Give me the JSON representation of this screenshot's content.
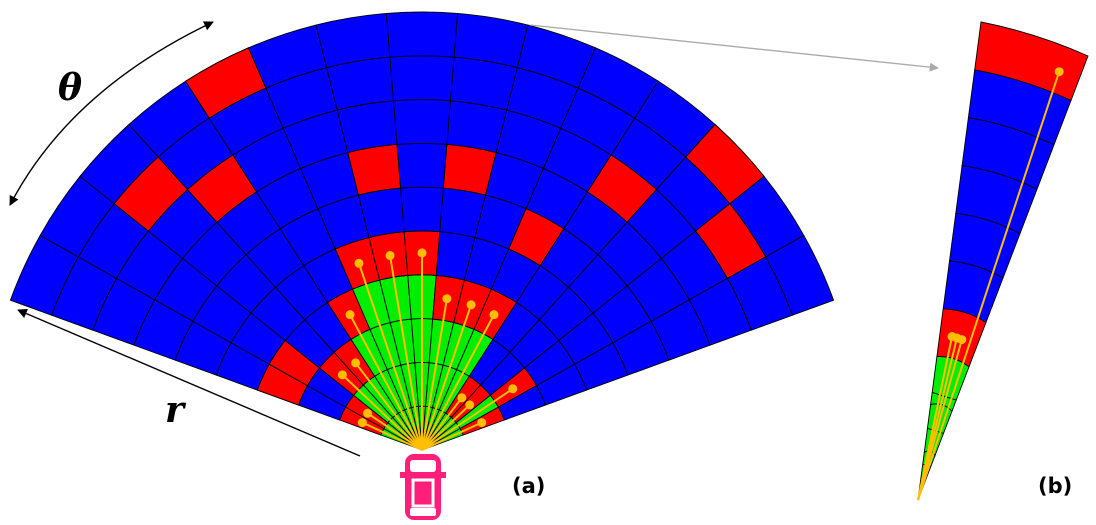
{
  "labels": {
    "theta": "θ",
    "r": "r",
    "panel_a": "(a)",
    "panel_b": "(b)"
  },
  "colors": {
    "free": "#00ee00",
    "occupied": "#ff0000",
    "unknown": "#0000ff",
    "ray": "#ffbf00",
    "grid_line": "#000000",
    "car": "#ff1f7a"
  },
  "icons": {
    "vehicle": "car-icon"
  },
  "grid": {
    "sectors": 15,
    "rings": 10,
    "sector_states": [
      [
        1,
        "free",
        3
      ],
      [
        1,
        "free",
        3
      ],
      [
        2,
        "free",
        8
      ],
      [
        2,
        "free",
        7
      ],
      [
        3,
        "free",
        9
      ],
      [
        4,
        "free",
        4
      ],
      [
        4,
        "free",
        6
      ],
      [
        4,
        "free",
        2
      ],
      [
        3,
        "free",
        6
      ],
      [
        3,
        "free",
        3
      ],
      [
        3,
        "free",
        5
      ],
      [
        1,
        "free",
        7
      ],
      [
        1,
        "free",
        9
      ],
      [
        2,
        "free",
        8
      ],
      [
        1,
        "free",
        10
      ]
    ]
  },
  "panel_b_wedge": {
    "rings": 10,
    "occupied_rings": [
      3,
      9
    ],
    "free_rings": 3,
    "rays": 4
  }
}
